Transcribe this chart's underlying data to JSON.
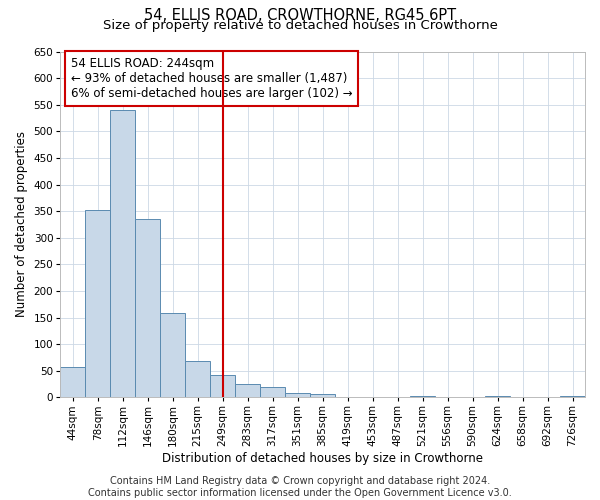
{
  "title": "54, ELLIS ROAD, CROWTHORNE, RG45 6PT",
  "subtitle": "Size of property relative to detached houses in Crowthorne",
  "xlabel": "Distribution of detached houses by size in Crowthorne",
  "ylabel": "Number of detached properties",
  "bin_labels": [
    "44sqm",
    "78sqm",
    "112sqm",
    "146sqm",
    "180sqm",
    "215sqm",
    "249sqm",
    "283sqm",
    "317sqm",
    "351sqm",
    "385sqm",
    "419sqm",
    "453sqm",
    "487sqm",
    "521sqm",
    "556sqm",
    "590sqm",
    "624sqm",
    "658sqm",
    "692sqm",
    "726sqm"
  ],
  "bar_heights": [
    57,
    352,
    540,
    336,
    158,
    68,
    42,
    26,
    20,
    8,
    7,
    0,
    0,
    0,
    2,
    0,
    0,
    2,
    0,
    0,
    3
  ],
  "bar_color": "#c8d8e8",
  "bar_edgecolor": "#5a8ab0",
  "bar_linewidth": 0.7,
  "vline_x": 6.0,
  "vline_color": "#cc0000",
  "vline_linewidth": 1.5,
  "annotation_text": "54 ELLIS ROAD: 244sqm\n← 93% of detached houses are smaller (1,487)\n6% of semi-detached houses are larger (102) →",
  "annotation_box_edgecolor": "#cc0000",
  "ylim": [
    0,
    650
  ],
  "yticks": [
    0,
    50,
    100,
    150,
    200,
    250,
    300,
    350,
    400,
    450,
    500,
    550,
    600,
    650
  ],
  "footer_text": "Contains HM Land Registry data © Crown copyright and database right 2024.\nContains public sector information licensed under the Open Government Licence v3.0.",
  "background_color": "#ffffff",
  "grid_color": "#ccd8e5",
  "title_fontsize": 10.5,
  "subtitle_fontsize": 9.5,
  "axis_label_fontsize": 8.5,
  "tick_fontsize": 7.5,
  "annotation_fontsize": 8.5,
  "footer_fontsize": 7.0,
  "figwidth": 6.0,
  "figheight": 5.0,
  "dpi": 100
}
